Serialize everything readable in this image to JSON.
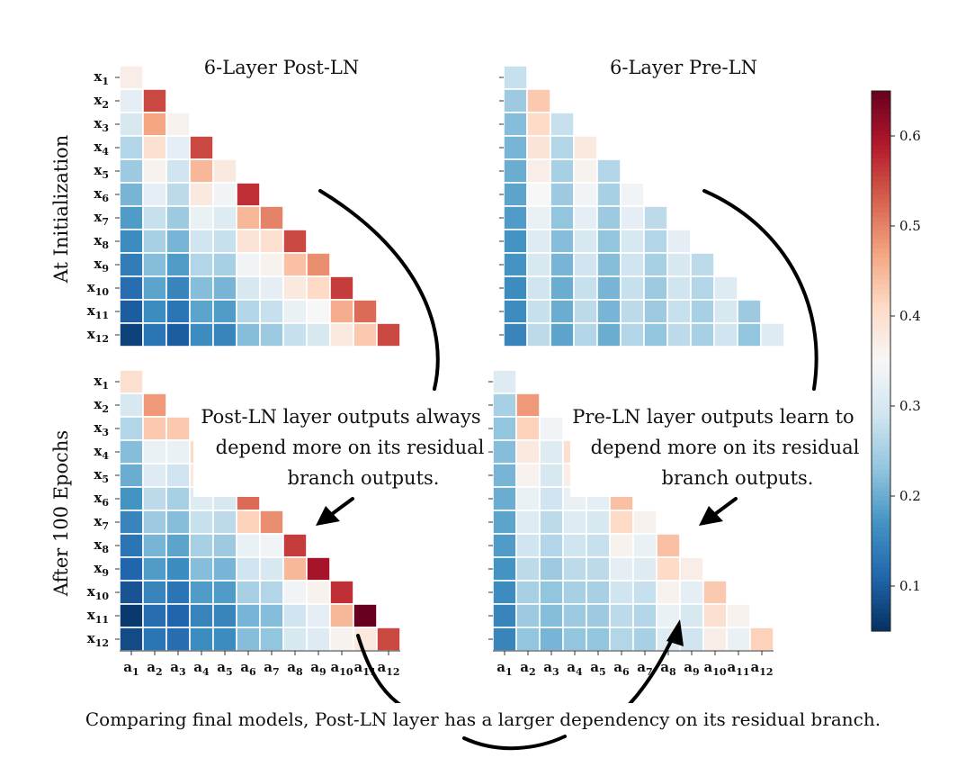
{
  "chart_data": [
    {
      "type": "heatmap",
      "title": "6-Layer Post-LN",
      "row_label": "At Initialization",
      "rows": [
        "x1",
        "x2",
        "x3",
        "x4",
        "x5",
        "x6",
        "x7",
        "x8",
        "x9",
        "x10",
        "x11",
        "x12"
      ],
      "cols": [
        "a1",
        "a2",
        "a3",
        "a4",
        "a5",
        "a6",
        "a7",
        "a8",
        "a9",
        "a10",
        "a11",
        "a12"
      ],
      "values": [
        [
          0.37
        ],
        [
          0.32,
          0.55
        ],
        [
          0.3,
          0.47,
          0.36
        ],
        [
          0.26,
          0.4,
          0.32,
          0.55
        ],
        [
          0.24,
          0.36,
          0.29,
          0.45,
          0.38
        ],
        [
          0.21,
          0.32,
          0.27,
          0.38,
          0.34,
          0.57
        ],
        [
          0.18,
          0.28,
          0.24,
          0.33,
          0.31,
          0.45,
          0.5
        ],
        [
          0.16,
          0.25,
          0.21,
          0.29,
          0.28,
          0.39,
          0.4,
          0.55
        ],
        [
          0.14,
          0.22,
          0.18,
          0.26,
          0.25,
          0.34,
          0.36,
          0.44,
          0.49
        ],
        [
          0.12,
          0.19,
          0.15,
          0.22,
          0.21,
          0.3,
          0.32,
          0.38,
          0.41,
          0.56
        ],
        [
          0.1,
          0.16,
          0.13,
          0.19,
          0.18,
          0.26,
          0.28,
          0.33,
          0.35,
          0.46,
          0.52
        ],
        [
          0.07,
          0.13,
          0.1,
          0.16,
          0.15,
          0.22,
          0.24,
          0.28,
          0.3,
          0.38,
          0.43,
          0.55
        ]
      ]
    },
    {
      "type": "heatmap",
      "title": "6-Layer Pre-LN",
      "row_label": "At Initialization",
      "rows": [
        "x1",
        "x2",
        "x3",
        "x4",
        "x5",
        "x6",
        "x7",
        "x8",
        "x9",
        "x10",
        "x11",
        "x12"
      ],
      "cols": [
        "a1",
        "a2",
        "a3",
        "a4",
        "a5",
        "a6",
        "a7",
        "a8",
        "a9",
        "a10",
        "a11",
        "a12"
      ],
      "values": [
        [
          0.28
        ],
        [
          0.24,
          0.43
        ],
        [
          0.22,
          0.41,
          0.28
        ],
        [
          0.21,
          0.39,
          0.26,
          0.38
        ],
        [
          0.2,
          0.37,
          0.25,
          0.36,
          0.26
        ],
        [
          0.19,
          0.35,
          0.24,
          0.34,
          0.25,
          0.34
        ],
        [
          0.18,
          0.33,
          0.23,
          0.32,
          0.24,
          0.32,
          0.27
        ],
        [
          0.17,
          0.31,
          0.22,
          0.3,
          0.23,
          0.3,
          0.26,
          0.32
        ],
        [
          0.17,
          0.3,
          0.21,
          0.29,
          0.22,
          0.29,
          0.25,
          0.3,
          0.27
        ],
        [
          0.16,
          0.29,
          0.2,
          0.28,
          0.21,
          0.28,
          0.24,
          0.29,
          0.26,
          0.31
        ],
        [
          0.16,
          0.28,
          0.2,
          0.27,
          0.21,
          0.27,
          0.24,
          0.28,
          0.25,
          0.3,
          0.24
        ],
        [
          0.15,
          0.27,
          0.19,
          0.26,
          0.2,
          0.26,
          0.23,
          0.27,
          0.25,
          0.29,
          0.23,
          0.31
        ]
      ]
    },
    {
      "type": "heatmap",
      "row_label": "After 100 Epochs",
      "xlabel_ticks": [
        "a1",
        "a2",
        "a3",
        "a4",
        "a5",
        "a6",
        "a7",
        "a8",
        "a9",
        "a10",
        "a11",
        "a12"
      ],
      "rows": [
        "x1",
        "x2",
        "x3",
        "x4",
        "x5",
        "x6",
        "x7",
        "x8",
        "x9",
        "x10",
        "x11",
        "x12"
      ],
      "cols": [
        "a1",
        "a2",
        "a3",
        "a4",
        "a5",
        "a6",
        "a7",
        "a8",
        "a9",
        "a10",
        "a11",
        "a12"
      ],
      "values": [
        [
          0.4
        ],
        [
          0.3,
          0.48
        ],
        [
          0.26,
          0.43,
          0.43
        ],
        [
          0.22,
          0.33,
          0.33,
          0.41
        ],
        [
          0.2,
          0.31,
          0.29,
          0.38,
          0.47
        ],
        [
          0.17,
          0.27,
          0.25,
          0.31,
          0.3,
          0.52
        ],
        [
          0.15,
          0.24,
          0.22,
          0.28,
          0.27,
          0.42,
          0.49
        ],
        [
          0.13,
          0.21,
          0.19,
          0.25,
          0.24,
          0.33,
          0.34,
          0.56
        ],
        [
          0.11,
          0.18,
          0.16,
          0.22,
          0.21,
          0.29,
          0.3,
          0.45,
          0.6
        ],
        [
          0.09,
          0.15,
          0.13,
          0.18,
          0.18,
          0.25,
          0.26,
          0.34,
          0.36,
          0.57
        ],
        [
          0.06,
          0.12,
          0.11,
          0.15,
          0.15,
          0.21,
          0.22,
          0.29,
          0.32,
          0.45,
          0.65
        ],
        [
          0.08,
          0.13,
          0.12,
          0.16,
          0.16,
          0.22,
          0.23,
          0.3,
          0.31,
          0.36,
          0.38,
          0.55
        ]
      ]
    },
    {
      "type": "heatmap",
      "row_label": "After 100 Epochs",
      "xlabel_ticks": [
        "a1",
        "a2",
        "a3",
        "a4",
        "a5",
        "a6",
        "a7",
        "a8",
        "a9",
        "a10",
        "a11",
        "a12"
      ],
      "rows": [
        "x1",
        "x2",
        "x3",
        "x4",
        "x5",
        "x6",
        "x7",
        "x8",
        "x9",
        "x10",
        "x11",
        "x12"
      ],
      "cols": [
        "a1",
        "a2",
        "a3",
        "a4",
        "a5",
        "a6",
        "a7",
        "a8",
        "a9",
        "a10",
        "a11",
        "a12"
      ],
      "values": [
        [
          0.31
        ],
        [
          0.25,
          0.48
        ],
        [
          0.23,
          0.42,
          0.34
        ],
        [
          0.22,
          0.38,
          0.31,
          0.4
        ],
        [
          0.21,
          0.36,
          0.3,
          0.37,
          0.35
        ],
        [
          0.2,
          0.33,
          0.29,
          0.33,
          0.32,
          0.44
        ],
        [
          0.19,
          0.31,
          0.27,
          0.31,
          0.3,
          0.41,
          0.36
        ],
        [
          0.18,
          0.29,
          0.26,
          0.29,
          0.28,
          0.36,
          0.33,
          0.44
        ],
        [
          0.17,
          0.27,
          0.24,
          0.27,
          0.27,
          0.32,
          0.31,
          0.41,
          0.37
        ],
        [
          0.16,
          0.25,
          0.23,
          0.25,
          0.25,
          0.29,
          0.28,
          0.36,
          0.32,
          0.43
        ],
        [
          0.15,
          0.24,
          0.22,
          0.24,
          0.24,
          0.27,
          0.26,
          0.33,
          0.3,
          0.4,
          0.36
        ],
        [
          0.15,
          0.23,
          0.21,
          0.23,
          0.23,
          0.26,
          0.25,
          0.31,
          0.29,
          0.37,
          0.33,
          0.42
        ]
      ]
    }
  ],
  "colorbar": {
    "ticks": [
      0.1,
      0.2,
      0.3,
      0.4,
      0.5,
      0.6
    ],
    "tick_labels": [
      "0.1",
      "0.2",
      "0.3",
      "0.4",
      "0.5",
      "0.6"
    ],
    "range": [
      0.05,
      0.65
    ]
  },
  "annotations": {
    "post_ln": [
      "Post-LN layer outputs always",
      "depend more on its residual",
      "branch outputs."
    ],
    "pre_ln": [
      "Pre-LN layer outputs learn to",
      "depend more on its residual",
      "branch outputs."
    ],
    "bottom": "Comparing final models, Post-LN layer has a larger dependency on its residual branch."
  },
  "colors": {
    "low": "#053061",
    "mid": "#f7f7f7",
    "high": "#67001f"
  }
}
